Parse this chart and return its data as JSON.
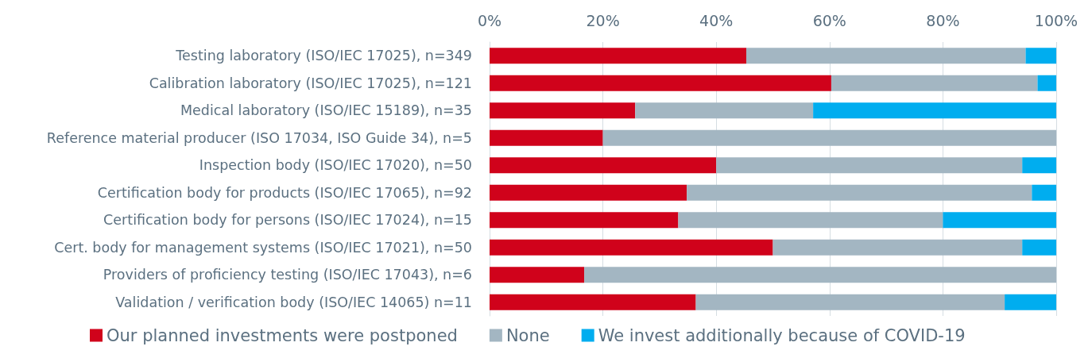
{
  "chart_data": {
    "type": "bar",
    "orientation": "horizontal",
    "stacked": true,
    "categories": [
      "Testing laboratory (ISO/IEC 17025), n=349",
      "Calibration laboratory (ISO/IEC 17025), n=121",
      "Medical laboratory (ISO/IEC 15189), n=35",
      "Reference material producer (ISO 17034, ISO Guide 34), n=5",
      "Inspection body (ISO/IEC 17020), n=50",
      "Certification body for products (ISO/IEC 17065), n=92",
      "Certification body for persons (ISO/IEC 17024), n=15",
      "Cert. body for management systems (ISO/IEC 17021), n=50",
      "Providers of proficiency testing (ISO/IEC 17043), n=6",
      "Validation / verification body (ISO/IEC 14065) n=11"
    ],
    "series": [
      {
        "name": "Our planned investments were postponed",
        "color": "#d0021b",
        "values": [
          45.3,
          60.3,
          25.7,
          20,
          40,
          34.8,
          33.3,
          50,
          16.7,
          36.4
        ]
      },
      {
        "name": "None",
        "color": "#a3b6c2",
        "values": [
          49.3,
          36.4,
          31.4,
          80,
          54,
          60.9,
          46.7,
          44,
          83.3,
          54.5
        ]
      },
      {
        "name": "We invest additionally because of COVID-19",
        "color": "#00adef",
        "values": [
          5.4,
          3.3,
          42.9,
          0,
          6,
          4.3,
          20,
          6,
          0,
          9.1
        ]
      }
    ],
    "xlim": [
      0,
      100
    ],
    "xticks": [
      {
        "value": 0,
        "label": "0%"
      },
      {
        "value": 20,
        "label": "20%"
      },
      {
        "value": 40,
        "label": "40%"
      },
      {
        "value": 60,
        "label": "60%"
      },
      {
        "value": 80,
        "label": "80%"
      },
      {
        "value": 100,
        "label": "100%"
      }
    ],
    "grid": "x",
    "legend": "bottom"
  }
}
